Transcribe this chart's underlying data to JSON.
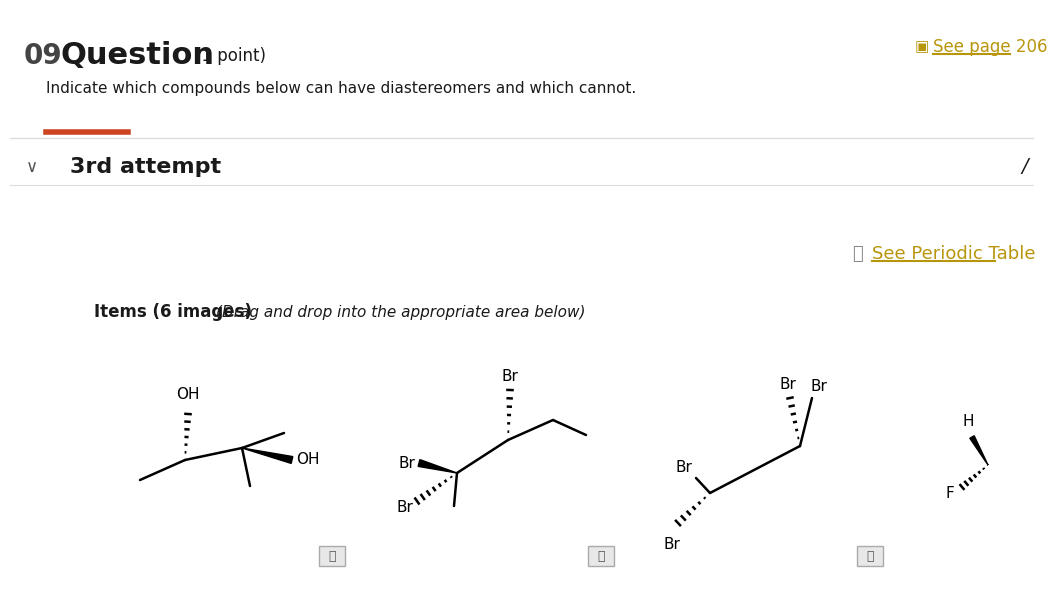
{
  "title_number": "09",
  "title_text": "Question",
  "title_points": "(1 point)",
  "subtitle": "Indicate which compounds below can have diastereomers and which cannot.",
  "attempt_label": "3rd attempt",
  "see_page": "See page 206",
  "see_periodic": "See Periodic Table",
  "items_label": "Items (6 images)",
  "items_sublabel": "(Drag and drop into the appropriate area below)",
  "bg_color": "#ffffff",
  "text_color": "#1a1a1a",
  "orange_color": "#cc4422",
  "gold_color": "#b8960c",
  "gray_color": "#555555",
  "light_gray": "#dddddd",
  "icon_gray": "#888888"
}
